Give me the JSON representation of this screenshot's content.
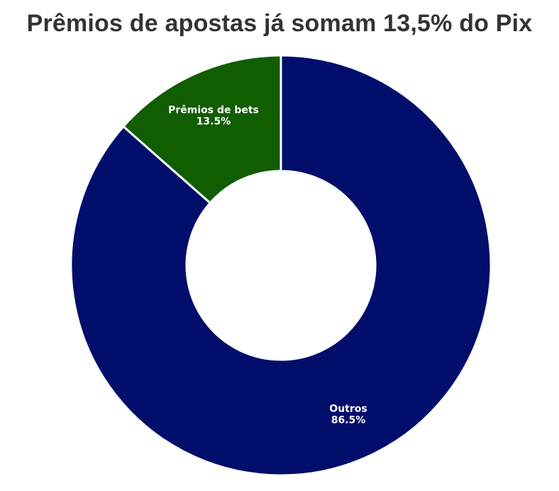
{
  "chart_data": {
    "type": "pie",
    "variant": "donut",
    "title": "Prêmios de apostas já somam 13,5% do Pix",
    "slices": [
      {
        "label": "Outros",
        "value": 86.5,
        "value_label": "86.5%",
        "color": "#020e6b"
      },
      {
        "label": "Prêmios de bets",
        "value": 13.5,
        "value_label": "13.5%",
        "color": "#115d02"
      }
    ],
    "start": "top, clockwise",
    "legend": "none"
  }
}
